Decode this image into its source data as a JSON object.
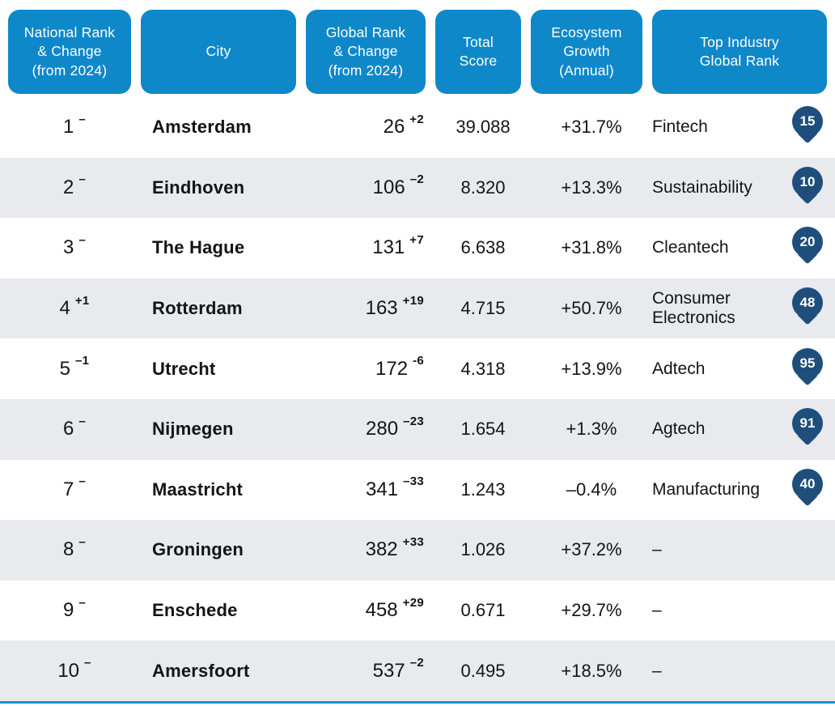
{
  "colors": {
    "header_blue": "#0e88c9",
    "row_stripe_gray": "#e8eaee",
    "pin_navy": "#1f4e7c",
    "bottom_rule_blue": "#1a8fd1",
    "text": "#141414"
  },
  "icons": {
    "industry_rank_marker": "location-pin-icon"
  },
  "chart_data": {
    "type": "table",
    "columns": [
      "National Rank\n& Change\n(from 2024)",
      "City",
      "Global Rank\n& Change\n(from 2024)",
      "Total\nScore",
      "Ecosystem\nGrowth\n(Annual)",
      "Top Industry\nGlobal Rank"
    ],
    "rows": [
      {
        "national_rank": "1",
        "national_change": "–",
        "city": "Amsterdam",
        "global_rank": "26",
        "global_change": "+2",
        "total_score": "39.088",
        "growth": "+31.7%",
        "industry": "Fintech",
        "industry_rank": "15"
      },
      {
        "national_rank": "2",
        "national_change": "–",
        "city": "Eindhoven",
        "global_rank": "106",
        "global_change": "–2",
        "total_score": "8.320",
        "growth": "+13.3%",
        "industry": "Sustainability",
        "industry_rank": "10"
      },
      {
        "national_rank": "3",
        "national_change": "–",
        "city": "The Hague",
        "global_rank": "131",
        "global_change": "+7",
        "total_score": "6.638",
        "growth": "+31.8%",
        "industry": "Cleantech",
        "industry_rank": "20"
      },
      {
        "national_rank": "4",
        "national_change": "+1",
        "city": "Rotterdam",
        "global_rank": "163",
        "global_change": "+19",
        "total_score": "4.715",
        "growth": "+50.7%",
        "industry": "Consumer Electronics",
        "industry_rank": "48"
      },
      {
        "national_rank": "5",
        "national_change": "–1",
        "city": "Utrecht",
        "global_rank": "172",
        "global_change": "-6",
        "total_score": "4.318",
        "growth": "+13.9%",
        "industry": "Adtech",
        "industry_rank": "95"
      },
      {
        "national_rank": "6",
        "national_change": "–",
        "city": "Nijmegen",
        "global_rank": "280",
        "global_change": "–23",
        "total_score": "1.654",
        "growth": "+1.3%",
        "industry": "Agtech",
        "industry_rank": "91"
      },
      {
        "national_rank": "7",
        "national_change": "–",
        "city": "Maastricht",
        "global_rank": "341",
        "global_change": "–33",
        "total_score": "1.243",
        "growth": "–0.4%",
        "industry": "Manufacturing",
        "industry_rank": "40"
      },
      {
        "national_rank": "8",
        "national_change": "–",
        "city": "Groningen",
        "global_rank": "382",
        "global_change": "+33",
        "total_score": "1.026",
        "growth": "+37.2%",
        "industry": "–",
        "industry_rank": ""
      },
      {
        "national_rank": "9",
        "national_change": "–",
        "city": "Enschede",
        "global_rank": "458",
        "global_change": "+29",
        "total_score": "0.671",
        "growth": "+29.7%",
        "industry": "–",
        "industry_rank": ""
      },
      {
        "national_rank": "10",
        "national_change": "–",
        "city": "Amersfoort",
        "global_rank": "537",
        "global_change": "–2",
        "total_score": "0.495",
        "growth": "+18.5%",
        "industry": "–",
        "industry_rank": ""
      }
    ]
  }
}
